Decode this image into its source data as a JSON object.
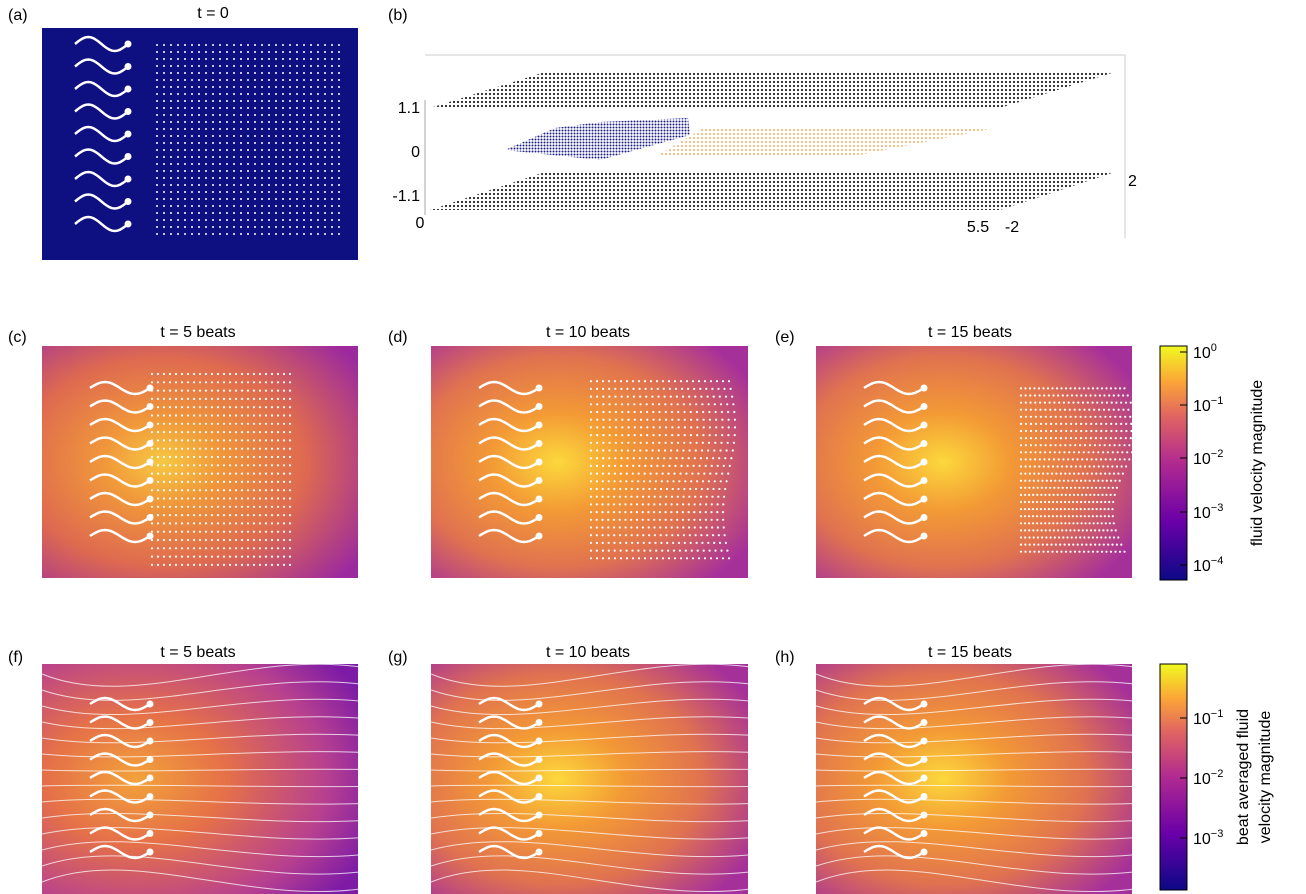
{
  "panels": [
    {
      "label": "(a)",
      "title": "t = 0"
    },
    {
      "label": "(b)"
    },
    {
      "label": "(c)",
      "title": "t = 5 beats"
    },
    {
      "label": "(d)",
      "title": "t = 10 beats"
    },
    {
      "label": "(e)",
      "title": "t = 15 beats"
    },
    {
      "label": "(f)",
      "title": "t = 5 beats"
    },
    {
      "label": "(g)",
      "title": "t = 10 beats"
    },
    {
      "label": "(h)",
      "title": "t = 15 beats"
    }
  ],
  "axes_3d": {
    "ticks": [
      "1.1",
      "0",
      "-1.1",
      "0",
      "5.5",
      "-2",
      "2"
    ]
  },
  "colorbars": [
    {
      "label_lines": [
        "fluid velocity magnitude"
      ],
      "ticks": [
        {
          "base": "10",
          "exp": "0"
        },
        {
          "base": "10",
          "exp": "−1"
        },
        {
          "base": "10",
          "exp": "−2"
        },
        {
          "base": "10",
          "exp": "−3"
        },
        {
          "base": "10",
          "exp": "−4"
        }
      ]
    },
    {
      "label_lines": [
        "beat averaged fluid",
        "velocity magnitude"
      ],
      "ticks": [
        {
          "base": "10",
          "exp": "−1"
        },
        {
          "base": "10",
          "exp": "−2"
        },
        {
          "base": "10",
          "exp": "−3"
        }
      ]
    }
  ]
}
